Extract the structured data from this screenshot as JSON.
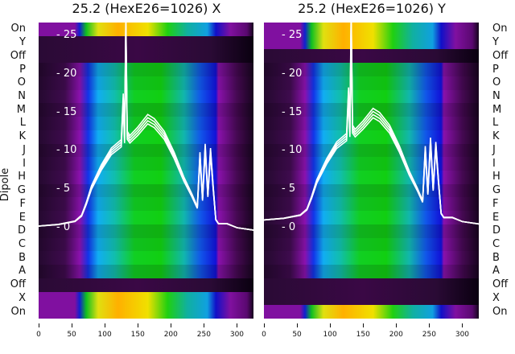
{
  "chart_data": {
    "type": "heatmap",
    "panels": [
      {
        "title": "25.2 (HexE26=1026) X",
        "row_types": [
          "on",
          "off",
          "off",
          "act",
          "act",
          "act",
          "act",
          "act",
          "act",
          "act",
          "act",
          "act",
          "act",
          "act",
          "act",
          "act",
          "act",
          "act",
          "act",
          "off",
          "on",
          "on"
        ]
      },
      {
        "title": "25.2 (HexE26=1026) Y",
        "row_types": [
          "on",
          "on",
          "off",
          "act",
          "act",
          "act",
          "act",
          "act",
          "act",
          "act",
          "act",
          "act",
          "act",
          "act",
          "act",
          "act",
          "act",
          "act",
          "act",
          "off",
          "off",
          "on"
        ]
      }
    ],
    "row_labels": [
      "On",
      "Y",
      "Off",
      "P",
      "O",
      "N",
      "M",
      "L",
      "K",
      "J",
      "I",
      "H",
      "G",
      "F",
      "E",
      "D",
      "C",
      "B",
      "A",
      "Off",
      "X",
      "On"
    ],
    "ylabel": "Dipole",
    "xlim": [
      0,
      325
    ],
    "x_ticks": [
      0,
      50,
      100,
      150,
      200,
      250,
      300
    ],
    "inner_ylim": [
      -1.5,
      27
    ],
    "inner_y_ticks": [
      0,
      5,
      10,
      15,
      20,
      25
    ],
    "colormaps": {
      "act": [
        [
          0,
          "#22082c"
        ],
        [
          40,
          "#3a0a48"
        ],
        [
          62,
          "#8010a0"
        ],
        [
          75,
          "#1030d8"
        ],
        [
          90,
          "#10a0e0"
        ],
        [
          115,
          "#10b0a0"
        ],
        [
          145,
          "#10c020"
        ],
        [
          185,
          "#10c010"
        ],
        [
          220,
          "#10a8a0"
        ],
        [
          245,
          "#1050d8"
        ],
        [
          268,
          "#1010c8"
        ],
        [
          272,
          "#8010a0"
        ],
        [
          300,
          "#40084c"
        ],
        [
          325,
          "#16041c"
        ]
      ],
      "on": [
        [
          0,
          "#8010a0"
        ],
        [
          55,
          "#8010a0"
        ],
        [
          62,
          "#1020d0"
        ],
        [
          72,
          "#10c020"
        ],
        [
          90,
          "#e0e010"
        ],
        [
          120,
          "#ffb000"
        ],
        [
          165,
          "#f0e000"
        ],
        [
          195,
          "#20d010"
        ],
        [
          225,
          "#10b0a0"
        ],
        [
          255,
          "#10a0e0"
        ],
        [
          268,
          "#1010c8"
        ],
        [
          290,
          "#8010a0"
        ],
        [
          315,
          "#5a0870"
        ],
        [
          325,
          "#16041c"
        ]
      ],
      "off": [
        [
          0,
          "#2a0a35"
        ],
        [
          150,
          "#3a0845"
        ],
        [
          260,
          "#2a0a35"
        ],
        [
          325,
          "#0a0010"
        ]
      ]
    },
    "line_series": [
      {
        "name": "profile",
        "x": [
          0,
          30,
          55,
          65,
          72,
          80,
          95,
          110,
          125,
          128,
          130,
          132,
          134,
          138,
          150,
          165,
          175,
          190,
          205,
          220,
          232,
          240,
          244,
          248,
          252,
          256,
          260,
          264,
          268,
          272,
          285,
          300,
          325
        ],
        "y": [
          0.2,
          0.4,
          0.8,
          1.5,
          3,
          5,
          7.5,
          9.5,
          10.5,
          16,
          11,
          25.5,
          11.5,
          11,
          12,
          13.5,
          13,
          11.5,
          9,
          6,
          4,
          2.5,
          9,
          3.5,
          10,
          4,
          9.5,
          5,
          1,
          0.5,
          0.5,
          0,
          -0.3
        ]
      }
    ]
  }
}
